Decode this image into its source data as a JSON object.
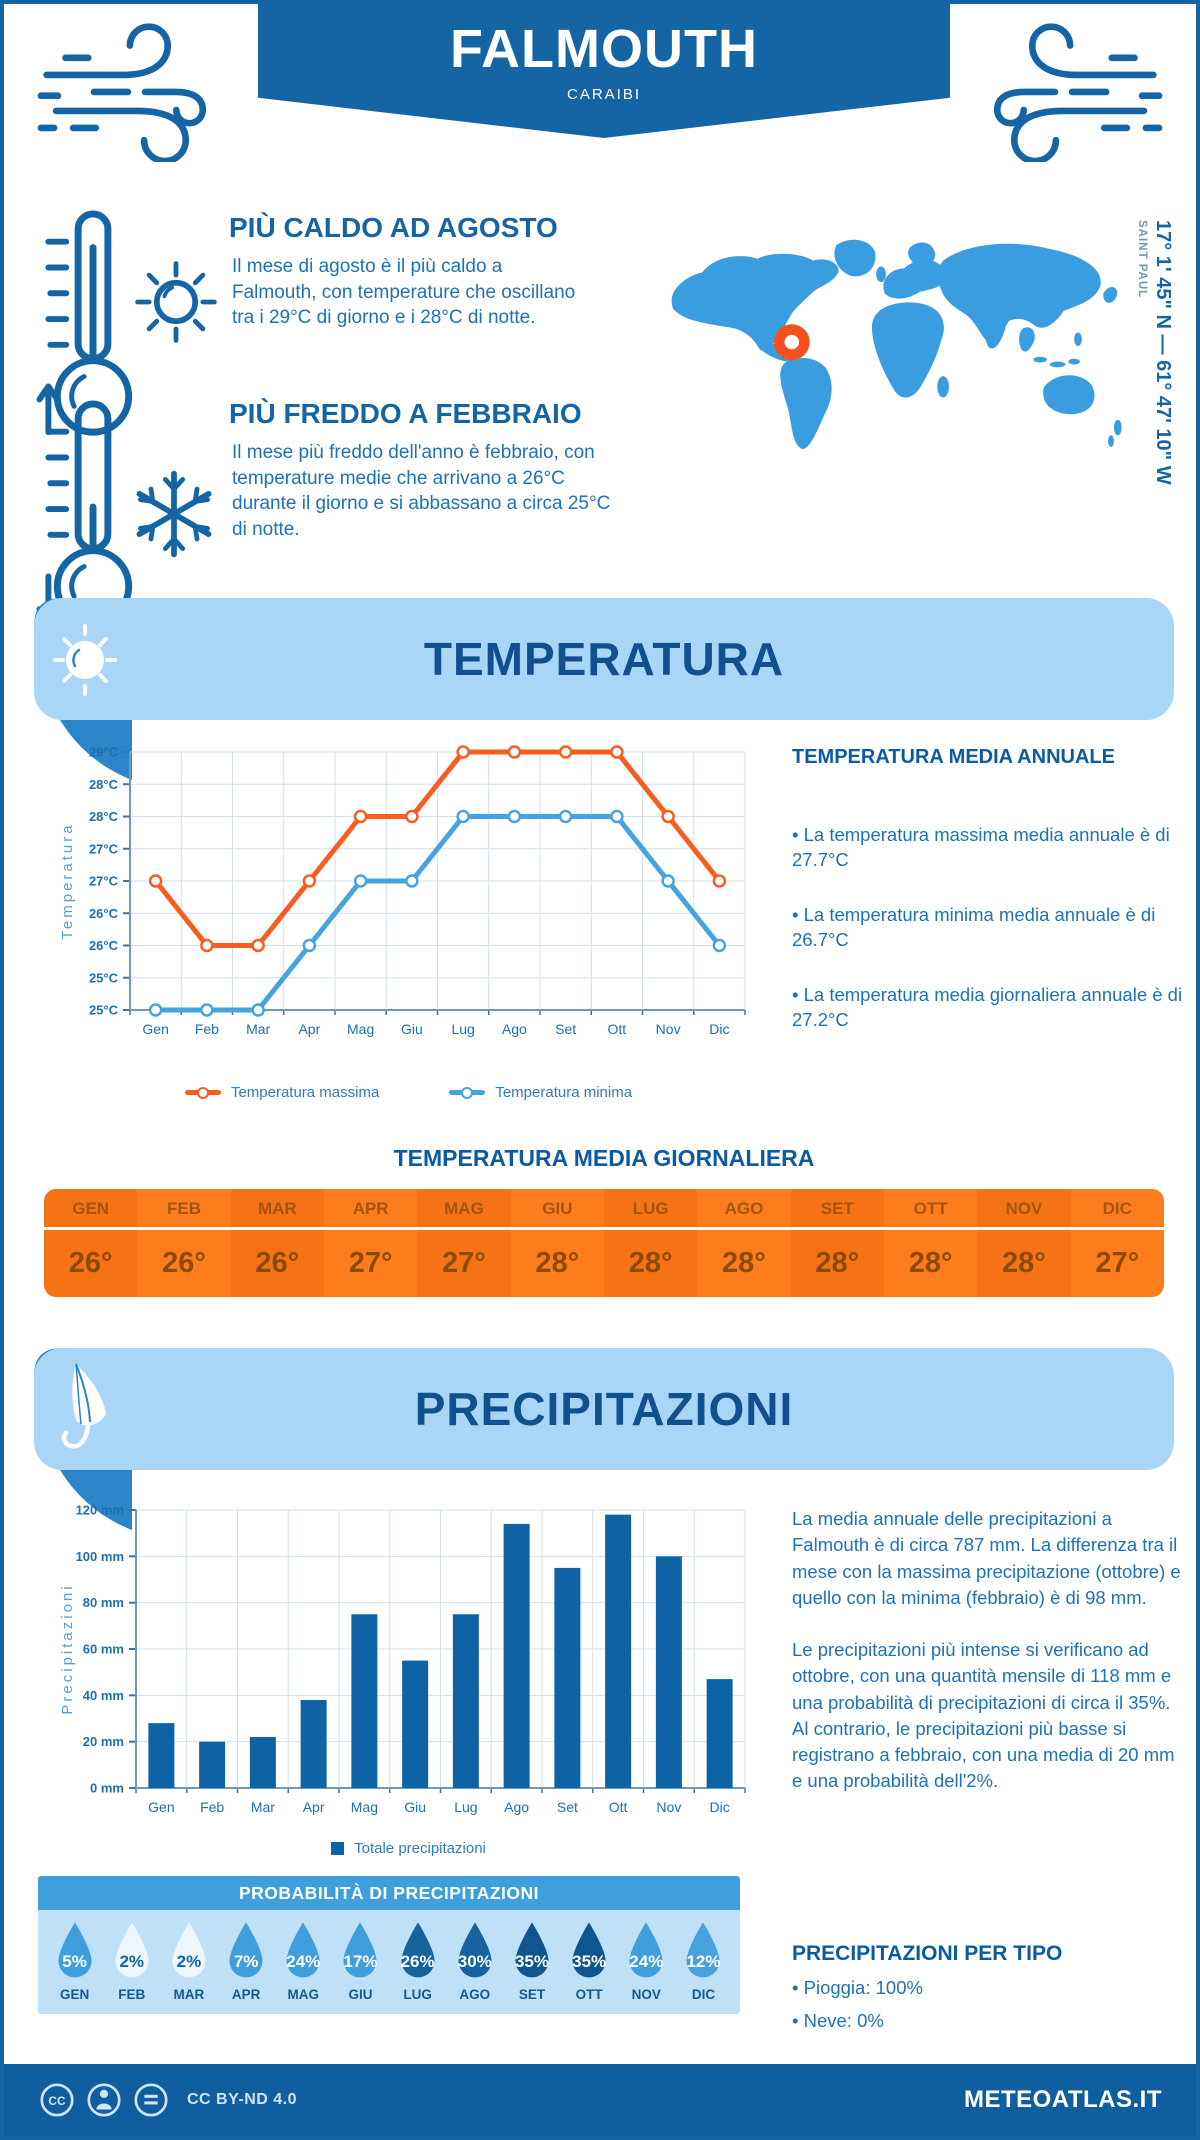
{
  "header": {
    "title": "FALMOUTH",
    "subtitle": "CARAIBI"
  },
  "highlights": {
    "hot": {
      "title": "PIÙ CALDO AD AGOSTO",
      "text": "Il mese di agosto è il più caldo a Falmouth, con temperature che oscillano tra i 29°C di giorno e i 28°C di notte."
    },
    "cold": {
      "title": "PIÙ FREDDO A FEBBRAIO",
      "text": "Il mese più freddo dell'anno è febbraio, con temperature medie che arrivano a 26°C durante il giorno e si abbassano a circa 25°C di notte."
    }
  },
  "map": {
    "coordinates": "17° 1' 45\" N — 61° 47' 10\" W",
    "region_label": "SAINT PAUL",
    "land_color": "#399ddf",
    "marker_color": "#f4511e"
  },
  "sections": {
    "temperature": "TEMPERATURA",
    "precipitation": "PRECIPITAZIONI"
  },
  "temperature_panel": {
    "heading": "TEMPERATURA MEDIA ANNUALE",
    "bullets": [
      "• La temperatura massima media annuale è di 27.7°C",
      "• La temperatura minima media annuale è di 26.7°C",
      "• La temperatura media giornaliera annuale è di 27.2°C"
    ]
  },
  "daily_table": {
    "title": "TEMPERATURA MEDIA GIORNALIERA",
    "months": [
      "GEN",
      "FEB",
      "MAR",
      "APR",
      "MAG",
      "GIU",
      "LUG",
      "AGO",
      "SET",
      "OTT",
      "NOV",
      "DIC"
    ],
    "values": [
      "26°",
      "26°",
      "26°",
      "27°",
      "27°",
      "28°",
      "28°",
      "28°",
      "28°",
      "28°",
      "28°",
      "27°"
    ]
  },
  "precipitation_panel": {
    "paragraphs": [
      "La media annuale delle precipitazioni a Falmouth è di circa 787 mm. La differenza tra il mese con la massima precipitazione (ottobre) e quello con la minima (febbraio) è di 98 mm.",
      "Le precipitazioni più intense si verificano ad ottobre, con una quantità mensile di 118 mm e una probabilità di precipitazioni di circa il 35%. Al contrario, le precipitazioni più basse si registrano a febbraio, con una media di 20 mm e una probabilità dell'2%."
    ]
  },
  "probability": {
    "title": "PROBABILITÀ DI PRECIPITAZIONI",
    "months": [
      "GEN",
      "FEB",
      "MAR",
      "APR",
      "MAG",
      "GIU",
      "LUG",
      "AGO",
      "SET",
      "OTT",
      "NOV",
      "DIC"
    ],
    "values": [
      "5%",
      "2%",
      "2%",
      "7%",
      "24%",
      "17%",
      "26%",
      "30%",
      "35%",
      "35%",
      "24%",
      "12%"
    ],
    "drop_colors": [
      "#3f9edb",
      "#edf6fd",
      "#edf6fd",
      "#3f9edb",
      "#3f9edb",
      "#3f9edb",
      "#16639f",
      "#16639f",
      "#0f5590",
      "#0f5590",
      "#3f9edb",
      "#47a2dc"
    ],
    "value_colors": [
      "#ffffff",
      "#1565a5",
      "#1565a5",
      "#ffffff",
      "#ffffff",
      "#ffffff",
      "#ffffff",
      "#ffffff",
      "#ffffff",
      "#ffffff",
      "#ffffff",
      "#ffffff"
    ]
  },
  "per_type": {
    "heading": "PRECIPITAZIONI PER TIPO",
    "items": [
      "• Pioggia: 100%",
      "• Neve: 0%"
    ]
  },
  "footer": {
    "license": "CC BY-ND 4.0",
    "brand": "METEOATLAS.IT"
  },
  "colors": {
    "dark_blue": "#1565a5",
    "light_blue_banner": "#a9d5f6",
    "orange": "#f95c1f",
    "line_blue": "#45a3e0",
    "bar_blue": "#0e63a4",
    "table_orange": "#f57315"
  },
  "chart_data": [
    {
      "type": "line",
      "categories": [
        "Gen",
        "Feb",
        "Mar",
        "Apr",
        "Mag",
        "Giu",
        "Lug",
        "Ago",
        "Set",
        "Ott",
        "Nov",
        "Dic"
      ],
      "series": [
        {
          "name": "Temperatura massima",
          "color": "#f95c1f",
          "values": [
            27,
            26,
            26,
            27,
            28,
            28,
            29,
            29,
            29,
            29,
            28,
            27
          ]
        },
        {
          "name": "Temperatura minima",
          "color": "#45a3e0",
          "values": [
            25,
            25,
            25,
            26,
            27,
            27,
            28,
            28,
            28,
            28,
            27,
            26
          ]
        }
      ],
      "ylabel": "Temperatura",
      "ylim": [
        25,
        29
      ],
      "ytick_step": 0.5,
      "ytick_labels_bottom_to_top": [
        "25°C",
        "25°C",
        "26°C",
        "26°C",
        "27°C",
        "27°C",
        "28°C",
        "28°C",
        "29°C"
      ],
      "grid": true,
      "legend_position": "bottom"
    },
    {
      "type": "bar",
      "categories": [
        "Gen",
        "Feb",
        "Mar",
        "Apr",
        "Mag",
        "Giu",
        "Lug",
        "Ago",
        "Set",
        "Ott",
        "Nov",
        "Dic"
      ],
      "series": [
        {
          "name": "Totale precipitazioni",
          "color": "#0e63a4",
          "values": [
            28,
            20,
            22,
            38,
            75,
            55,
            75,
            114,
            95,
            118,
            100,
            47
          ]
        }
      ],
      "ylabel": "Precipitazioni",
      "ylim": [
        0,
        120
      ],
      "ytick_step": 20,
      "ytick_labels_bottom_to_top": [
        "0 mm",
        "20 mm",
        "40 mm",
        "60 mm",
        "80 mm",
        "100 mm",
        "120 mm"
      ],
      "grid": true,
      "legend_position": "bottom"
    }
  ]
}
